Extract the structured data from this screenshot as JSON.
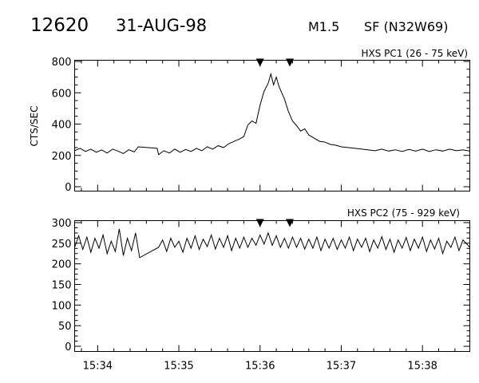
{
  "header": {
    "event_number": "12620",
    "date": "31-AUG-98",
    "goes_class": "M1.5",
    "location": "SF (N32W69)"
  },
  "chart_data": [
    {
      "type": "line",
      "title": "HXS PC1 (26 - 75 keV)",
      "ylabel": "CTS/SEC",
      "xlabel": "",
      "xlim": [
        "15:33:43",
        "15:38:35"
      ],
      "ylim": [
        0,
        800
      ],
      "y_ticks": [
        0,
        200,
        400,
        600,
        800
      ],
      "y_tick_labels": [
        "0",
        "200",
        "400",
        "600",
        "800"
      ],
      "x_ticks": [
        "15:34:00",
        "15:35:00",
        "15:36:00",
        "15:37:00",
        "15:38:00"
      ],
      "x_tick_labels": [
        "15:34",
        "15:35",
        "15:36",
        "15:37",
        "15:38"
      ],
      "markers_top": [
        "15:36:00",
        "15:36:22"
      ],
      "series": [
        {
          "points": [
            [
              "15:33:43",
              230
            ],
            [
              "15:33:47",
              245
            ],
            [
              "15:33:51",
              225
            ],
            [
              "15:33:55",
              240
            ],
            [
              "15:33:59",
              220
            ],
            [
              "15:34:03",
              235
            ],
            [
              "15:34:07",
              215
            ],
            [
              "15:34:11",
              240
            ],
            [
              "15:34:15",
              228
            ],
            [
              "15:34:19",
              212
            ],
            [
              "15:34:23",
              236
            ],
            [
              "15:34:27",
              222
            ],
            [
              "15:34:30",
              255
            ],
            [
              "15:34:44",
              245
            ],
            [
              "15:34:45",
              205
            ],
            [
              "15:34:49",
              230
            ],
            [
              "15:34:53",
              215
            ],
            [
              "15:34:57",
              240
            ],
            [
              "15:35:01",
              220
            ],
            [
              "15:35:05",
              238
            ],
            [
              "15:35:09",
              225
            ],
            [
              "15:35:13",
              245
            ],
            [
              "15:35:17",
              230
            ],
            [
              "15:35:21",
              255
            ],
            [
              "15:35:25",
              240
            ],
            [
              "15:35:29",
              262
            ],
            [
              "15:35:33",
              250
            ],
            [
              "15:35:37",
              275
            ],
            [
              "15:35:41",
              290
            ],
            [
              "15:35:45",
              305
            ],
            [
              "15:35:48",
              320
            ],
            [
              "15:35:51",
              395
            ],
            [
              "15:35:54",
              420
            ],
            [
              "15:35:57",
              405
            ],
            [
              "15:36:00",
              520
            ],
            [
              "15:36:03",
              610
            ],
            [
              "15:36:06",
              660
            ],
            [
              "15:36:08",
              720
            ],
            [
              "15:36:10",
              650
            ],
            [
              "15:36:12",
              700
            ],
            [
              "15:36:14",
              640
            ],
            [
              "15:36:16",
              600
            ],
            [
              "15:36:18",
              560
            ],
            [
              "15:36:21",
              480
            ],
            [
              "15:36:24",
              420
            ],
            [
              "15:36:27",
              390
            ],
            [
              "15:36:30",
              355
            ],
            [
              "15:36:33",
              370
            ],
            [
              "15:36:36",
              330
            ],
            [
              "15:36:40",
              310
            ],
            [
              "15:36:44",
              290
            ],
            [
              "15:36:48",
              285
            ],
            [
              "15:36:52",
              270
            ],
            [
              "15:36:56",
              265
            ],
            [
              "15:37:00",
              255
            ],
            [
              "15:37:05",
              250
            ],
            [
              "15:37:10",
              245
            ],
            [
              "15:37:15",
              240
            ],
            [
              "15:37:20",
              235
            ],
            [
              "15:37:25",
              230
            ],
            [
              "15:37:30",
              240
            ],
            [
              "15:37:35",
              228
            ],
            [
              "15:37:40",
              236
            ],
            [
              "15:37:45",
              225
            ],
            [
              "15:37:50",
              238
            ],
            [
              "15:37:55",
              228
            ],
            [
              "15:38:00",
              240
            ],
            [
              "15:38:05",
              225
            ],
            [
              "15:38:10",
              236
            ],
            [
              "15:38:15",
              228
            ],
            [
              "15:38:20",
              240
            ],
            [
              "15:38:25",
              230
            ],
            [
              "15:38:30",
              235
            ],
            [
              "15:38:35",
              228
            ]
          ]
        }
      ]
    },
    {
      "type": "line",
      "title": "HXS PC2 (75 - 929 keV)",
      "ylabel": "",
      "xlabel": "",
      "xlim": [
        "15:33:43",
        "15:38:35"
      ],
      "ylim": [
        0,
        300
      ],
      "y_ticks": [
        0,
        50,
        100,
        150,
        200,
        250,
        300
      ],
      "y_tick_labels": [
        "0",
        "50",
        "100",
        "150",
        "200",
        "250",
        "300"
      ],
      "x_ticks": [
        "15:34:00",
        "15:35:00",
        "15:36:00",
        "15:37:00",
        "15:38:00"
      ],
      "x_tick_labels": [
        "15:34",
        "15:35",
        "15:36",
        "15:37",
        "15:38"
      ],
      "markers_top": [
        "15:36:00",
        "15:36:22"
      ],
      "series": [
        {
          "points": [
            [
              "15:33:43",
              240
            ],
            [
              "15:33:46",
              268
            ],
            [
              "15:33:49",
              235
            ],
            [
              "15:33:52",
              265
            ],
            [
              "15:33:55",
              228
            ],
            [
              "15:33:58",
              262
            ],
            [
              "15:34:01",
              238
            ],
            [
              "15:34:04",
              270
            ],
            [
              "15:34:07",
              225
            ],
            [
              "15:34:10",
              255
            ],
            [
              "15:34:13",
              230
            ],
            [
              "15:34:16",
              285
            ],
            [
              "15:34:19",
              220
            ],
            [
              "15:34:22",
              262
            ],
            [
              "15:34:25",
              232
            ],
            [
              "15:34:28",
              275
            ],
            [
              "15:34:31",
              215
            ],
            [
              "15:34:45",
              240
            ],
            [
              "15:34:48",
              258
            ],
            [
              "15:34:51",
              230
            ],
            [
              "15:34:54",
              262
            ],
            [
              "15:34:57",
              240
            ],
            [
              "15:35:00",
              255
            ],
            [
              "15:35:03",
              228
            ],
            [
              "15:35:06",
              262
            ],
            [
              "15:35:09",
              238
            ],
            [
              "15:35:12",
              268
            ],
            [
              "15:35:15",
              235
            ],
            [
              "15:35:18",
              260
            ],
            [
              "15:35:21",
              242
            ],
            [
              "15:35:24",
              270
            ],
            [
              "15:35:27",
              236
            ],
            [
              "15:35:30",
              262
            ],
            [
              "15:35:33",
              240
            ],
            [
              "15:35:36",
              268
            ],
            [
              "15:35:39",
              232
            ],
            [
              "15:35:42",
              262
            ],
            [
              "15:35:45",
              238
            ],
            [
              "15:35:48",
              265
            ],
            [
              "15:35:51",
              240
            ],
            [
              "15:35:54",
              262
            ],
            [
              "15:35:57",
              245
            ],
            [
              "15:36:00",
              270
            ],
            [
              "15:36:03",
              248
            ],
            [
              "15:36:06",
              275
            ],
            [
              "15:36:09",
              245
            ],
            [
              "15:36:12",
              268
            ],
            [
              "15:36:15",
              240
            ],
            [
              "15:36:18",
              262
            ],
            [
              "15:36:21",
              238
            ],
            [
              "15:36:24",
              265
            ],
            [
              "15:36:27",
              240
            ],
            [
              "15:36:30",
              262
            ],
            [
              "15:36:33",
              236
            ],
            [
              "15:36:36",
              260
            ],
            [
              "15:36:39",
              238
            ],
            [
              "15:36:42",
              265
            ],
            [
              "15:36:45",
              232
            ],
            [
              "15:36:48",
              260
            ],
            [
              "15:36:51",
              238
            ],
            [
              "15:36:54",
              262
            ],
            [
              "15:36:57",
              235
            ],
            [
              "15:37:00",
              258
            ],
            [
              "15:37:03",
              238
            ],
            [
              "15:37:06",
              265
            ],
            [
              "15:37:09",
              232
            ],
            [
              "15:37:12",
              260
            ],
            [
              "15:37:15",
              240
            ],
            [
              "15:37:18",
              262
            ],
            [
              "15:37:21",
              230
            ],
            [
              "15:37:24",
              258
            ],
            [
              "15:37:27",
              238
            ],
            [
              "15:37:30",
              266
            ],
            [
              "15:37:33",
              235
            ],
            [
              "15:37:36",
              260
            ],
            [
              "15:37:39",
              228
            ],
            [
              "15:37:42",
              258
            ],
            [
              "15:37:45",
              238
            ],
            [
              "15:37:48",
              264
            ],
            [
              "15:37:51",
              232
            ],
            [
              "15:37:54",
              260
            ],
            [
              "15:37:57",
              238
            ],
            [
              "15:38:00",
              265
            ],
            [
              "15:38:03",
              230
            ],
            [
              "15:38:06",
              258
            ],
            [
              "15:38:09",
              236
            ],
            [
              "15:38:12",
              262
            ],
            [
              "15:38:15",
              225
            ],
            [
              "15:38:18",
              255
            ],
            [
              "15:38:21",
              240
            ],
            [
              "15:38:24",
              265
            ],
            [
              "15:38:27",
              232
            ],
            [
              "15:38:30",
              258
            ],
            [
              "15:38:35",
              240
            ]
          ]
        }
      ]
    }
  ]
}
